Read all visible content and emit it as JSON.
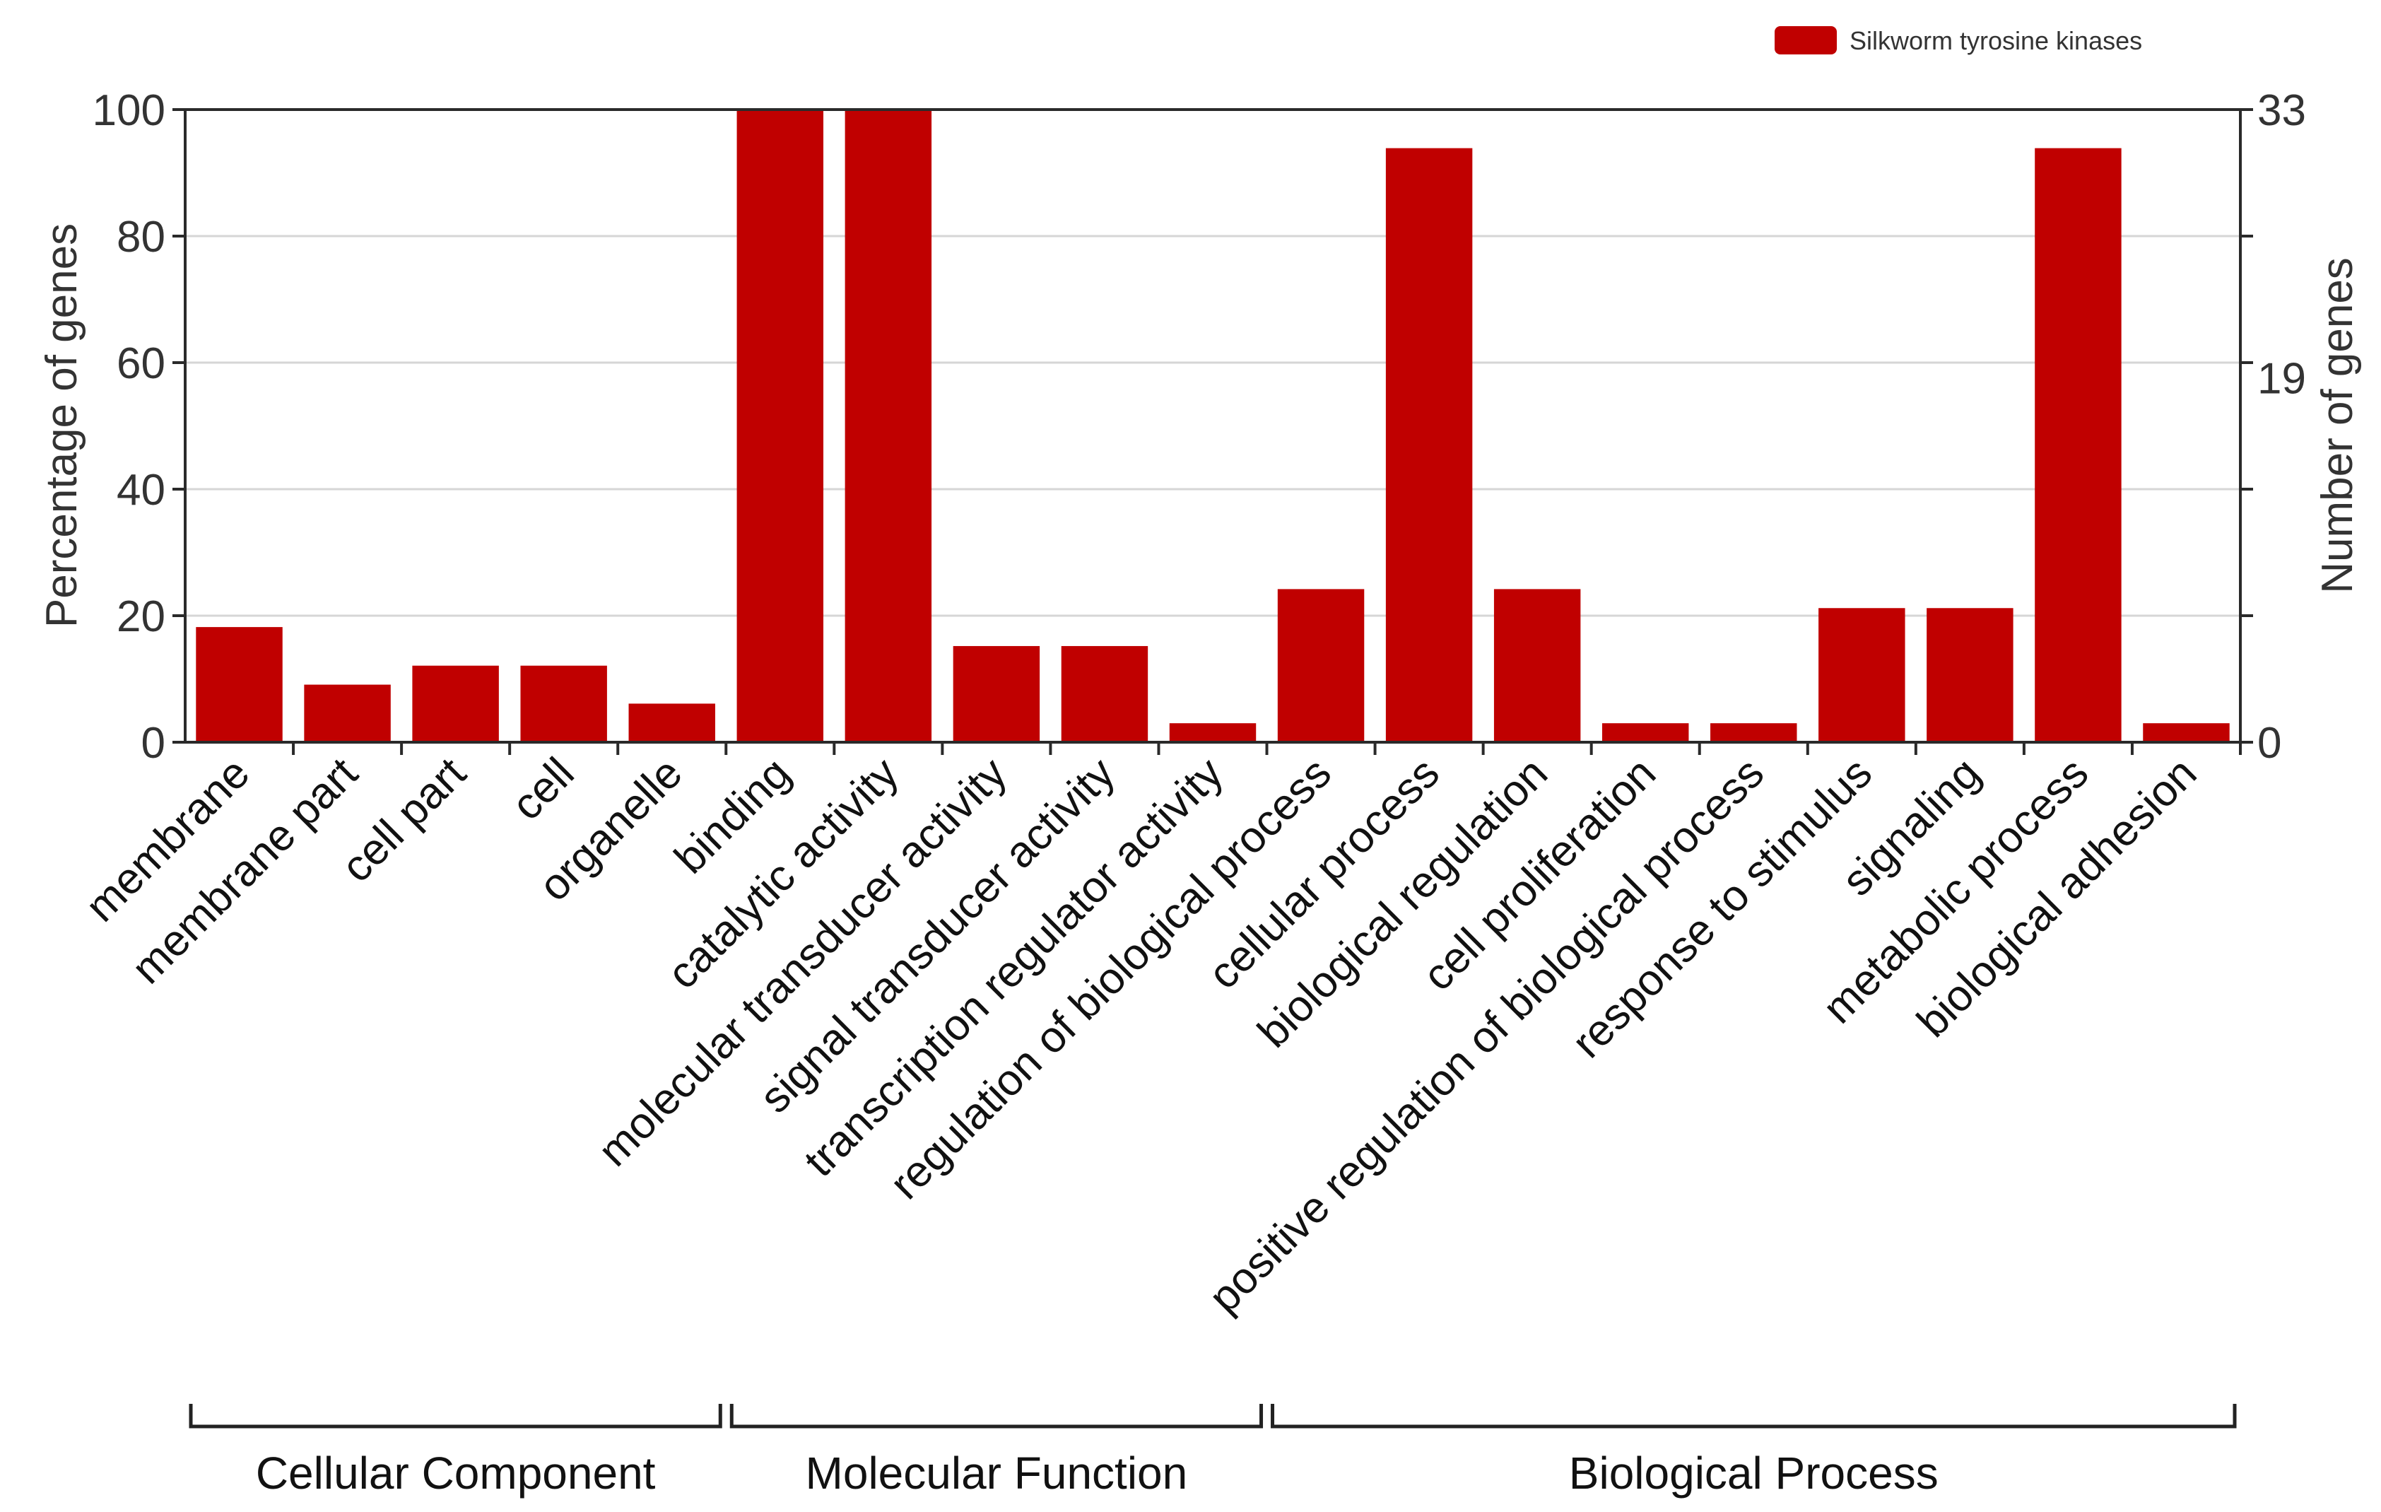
{
  "chart_data": {
    "type": "bar",
    "title": "",
    "legend": {
      "label": "Silkworm tyrosine kinases",
      "color": "#c00000",
      "position": "top-right"
    },
    "categories": [
      "membrane",
      "membrane part",
      "cell part",
      "cell",
      "organelle",
      "binding",
      "catalytic activity",
      "molecular transducer activity",
      "signal transducer activity",
      "transcription regulator activity",
      "regulation of biological process",
      "cellular process",
      "biological regulation",
      "cell proliferation",
      "positive regulation of biological process",
      "response to stimulus",
      "signaling",
      "metabolic process",
      "biological adhesion"
    ],
    "series": [
      {
        "name": "Silkworm tyrosine kinases",
        "color": "#c00000",
        "values": [
          18.2,
          9.1,
          12.1,
          12.1,
          6.1,
          100,
          100,
          15.2,
          15.2,
          3.0,
          24.2,
          93.9,
          24.2,
          3.0,
          3.0,
          21.2,
          21.2,
          93.9,
          3.0
        ]
      }
    ],
    "y_left": {
      "label": "Percentage of genes",
      "range": [
        0,
        100
      ],
      "ticks": [
        0,
        20,
        40,
        60,
        80,
        100
      ]
    },
    "y_right": {
      "label": "Number of genes",
      "range": [
        0,
        33
      ],
      "ticks": [
        0,
        19,
        33
      ]
    },
    "grid": true,
    "groups": [
      {
        "label": "Cellular Component",
        "start": 0,
        "end": 4
      },
      {
        "label": "Molecular Function",
        "start": 5,
        "end": 9
      },
      {
        "label": "Biological Process",
        "start": 10,
        "end": 18
      }
    ]
  }
}
